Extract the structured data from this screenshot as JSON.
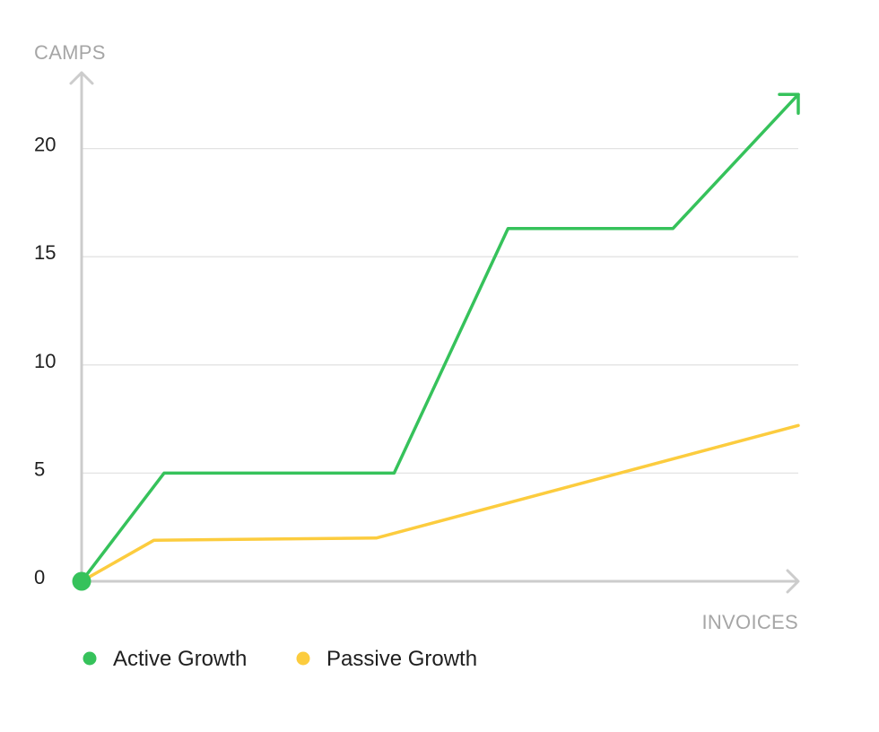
{
  "chart_data": {
    "type": "line",
    "ylabel": "CAMPS",
    "xlabel": "INVOICES",
    "ylim": [
      0,
      23.3
    ],
    "y_ticks": [
      0,
      5,
      10,
      15,
      20
    ],
    "xlim": [
      0,
      100
    ],
    "x_ticks_shown": false,
    "grid": "horizontal",
    "legend_position": "bottom-left",
    "series": [
      {
        "name": "Active Growth",
        "color": "#36c25b",
        "points": [
          [
            0,
            0
          ],
          [
            11.5,
            5
          ],
          [
            43.6,
            5
          ],
          [
            59.5,
            16.3
          ],
          [
            82.5,
            16.3
          ],
          [
            100,
            22.5
          ]
        ],
        "end_arrow": true
      },
      {
        "name": "Passive Growth",
        "color": "#fccc3e",
        "points": [
          [
            0,
            0
          ],
          [
            10.1,
            1.9
          ],
          [
            41.1,
            2.0
          ],
          [
            100,
            7.2
          ]
        ]
      }
    ],
    "origin_marker_color": "#36c25b",
    "axis_color": "#cccccc",
    "grid_color": "#e3e3e3"
  }
}
